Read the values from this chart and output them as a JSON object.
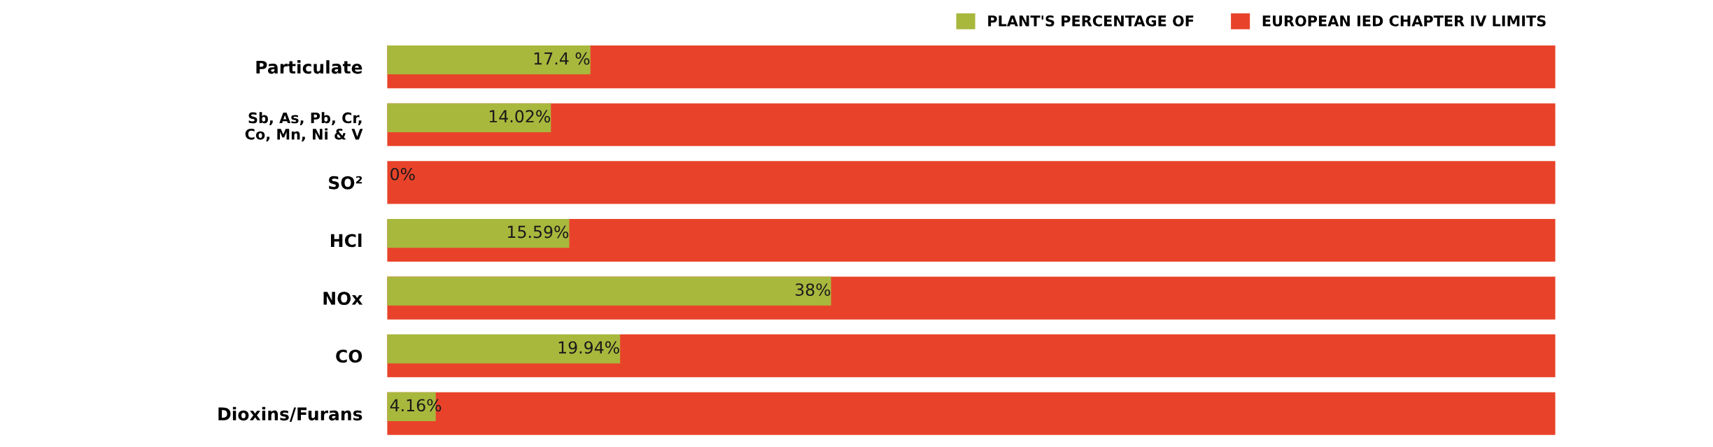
{
  "chart_data": {
    "type": "bar",
    "orientation": "horizontal",
    "categories": [
      "Particulate",
      "Sb, As, Pb, Cr,\nCo, Mn, Ni & V",
      "SO²",
      "HCl",
      "NOx",
      "CO",
      "Dioxins/Furans"
    ],
    "series": [
      {
        "name": "EUROPEAN IED CHAPTER IV LIMITS",
        "color": "#e8432a",
        "values": [
          100,
          100,
          100,
          100,
          100,
          100,
          100
        ]
      },
      {
        "name": "PLANT'S PERCENTAGE OF",
        "color": "#a8b83d",
        "values": [
          17.4,
          14.02,
          0,
          15.59,
          38,
          19.94,
          4.16
        ],
        "value_labels": [
          "17.4 %",
          "14.02%",
          "0%",
          "15.59%",
          "38%",
          "19.94%",
          "4.16%"
        ]
      }
    ],
    "xlim": [
      0,
      100
    ],
    "tick_labels": "y",
    "grid": false,
    "legend": "top right"
  }
}
